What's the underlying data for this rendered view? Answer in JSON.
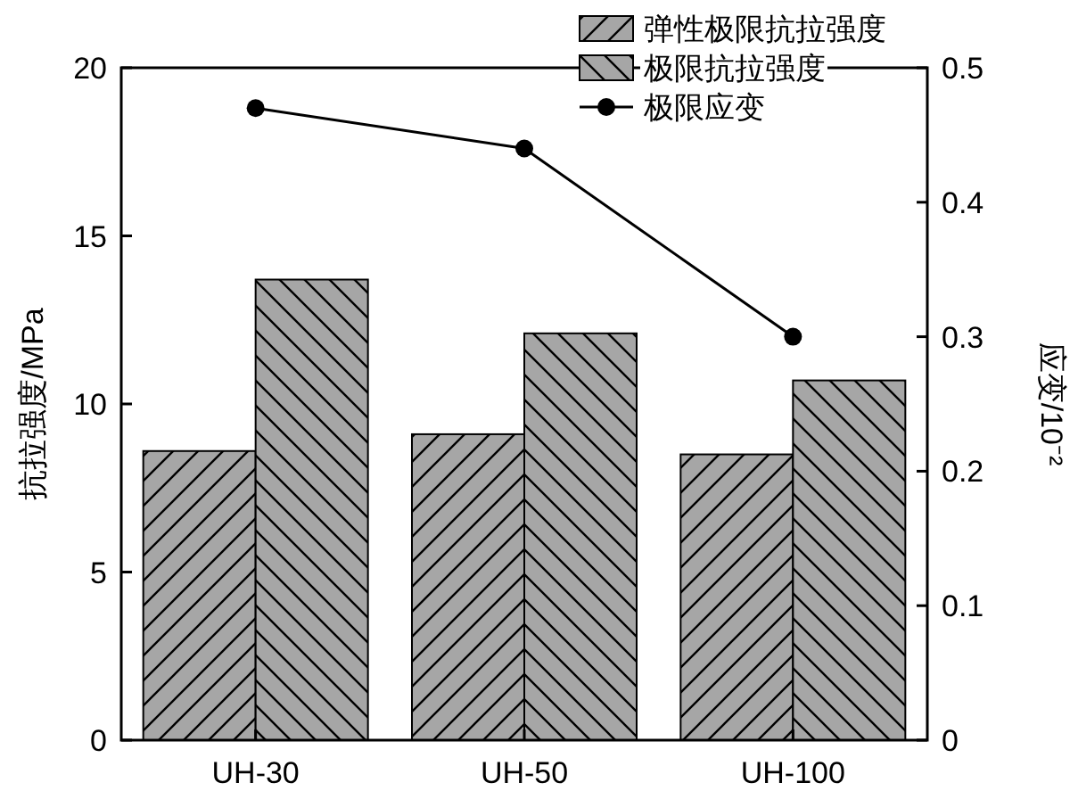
{
  "chart_data": {
    "type": "bar",
    "ylabel": "抗拉强度/MPa",
    "y2label": "应变/10⁻²",
    "categories": [
      "UH-30",
      "UH-50",
      "UH-100"
    ],
    "series": [
      {
        "name": "弹性极限抗拉强度",
        "color": "#a6a6a6",
        "values": [
          8.6,
          9.1,
          8.5
        ]
      },
      {
        "name": "极限抗拉强度",
        "color": "#a6a6a6",
        "values": [
          13.7,
          12.1,
          10.7
        ]
      },
      {
        "name": "极限应变",
        "type": "line",
        "axis": "y2",
        "color": "#000000",
        "marker": "circle",
        "values": [
          0.47,
          0.44,
          0.3
        ]
      }
    ],
    "ylim": [
      0,
      20
    ],
    "yticks": [
      0,
      5,
      10,
      15,
      20
    ],
    "y2lim": [
      0,
      0.5
    ],
    "y2ticks": [
      0,
      0.1,
      0.2,
      0.3,
      0.4,
      0.5
    ],
    "legend": "top right",
    "grid": false
  }
}
